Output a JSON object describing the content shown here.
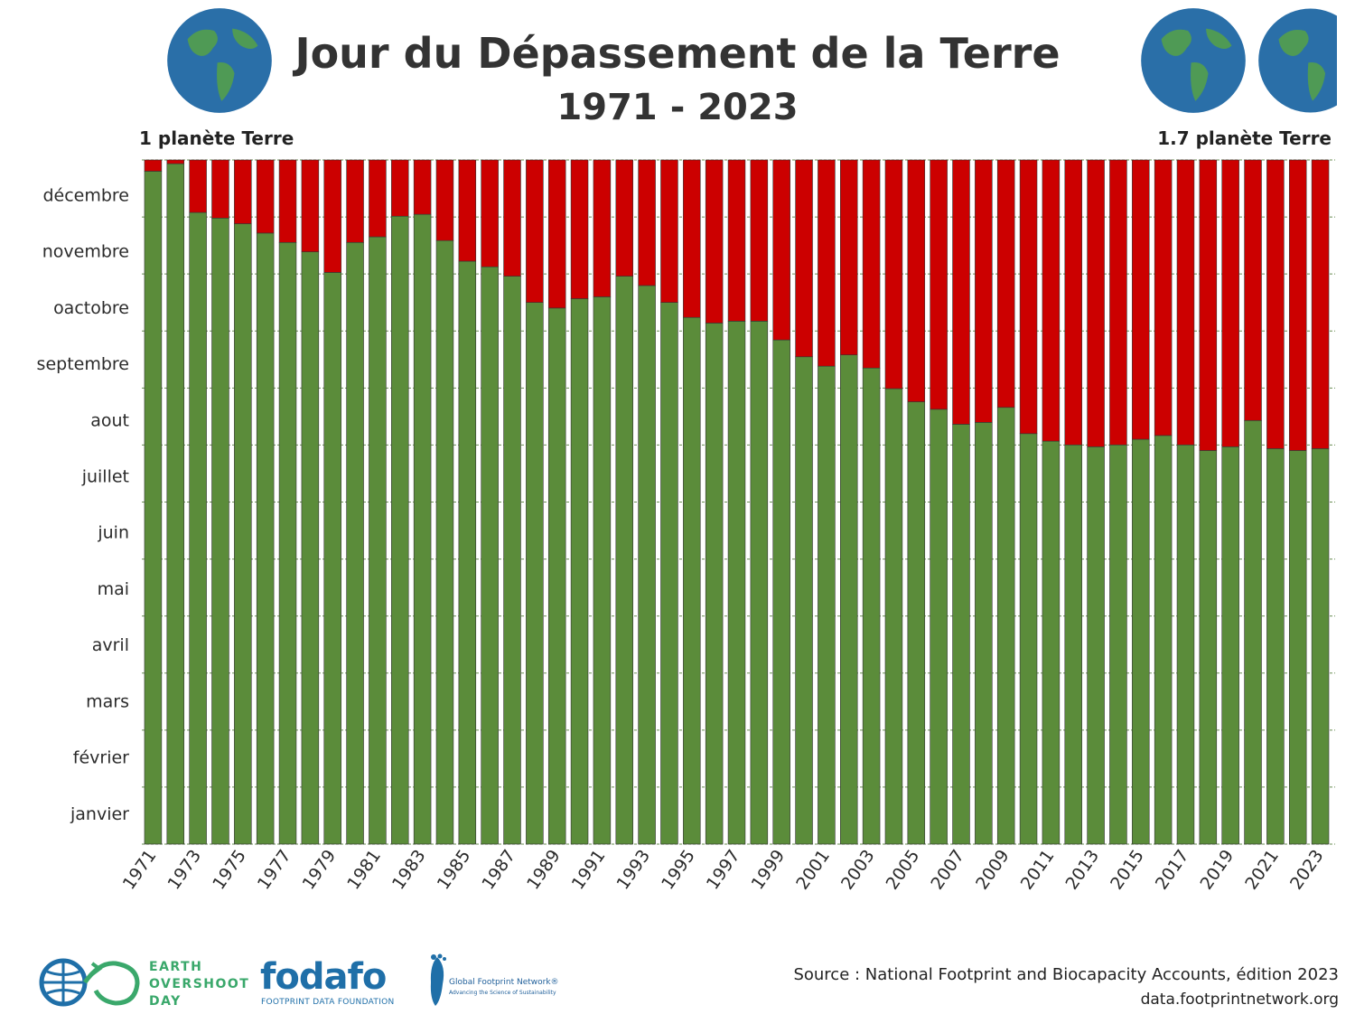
{
  "header": {
    "title": "Jour du Dépassement de la Terre",
    "subtitle": "1971 - 2023",
    "left_note": "1 planète Terre",
    "right_note": "1.7 planète Terre"
  },
  "footer": {
    "source": "Source : National Footprint and Biocapacity Accounts, édition 2023",
    "url": "data.footprintnetwork.org",
    "logos": {
      "earth_overshoot_day": [
        "EARTH",
        "OVERSHOOT",
        "DAY"
      ],
      "fodafo": "fodafo",
      "fodafo_sub": "FOOTPRINT DATA FOUNDATION",
      "gfn": "Global Footprint Network®",
      "gfn_sub": "Advancing the Science of Sustainability"
    }
  },
  "colors": {
    "green": "#5b8c3a",
    "red": "#cc0000",
    "grid": "#6b8f55",
    "globe_ocean": "#2a6fa8",
    "globe_land": "#4f9a55"
  },
  "chart_data": {
    "type": "bar",
    "stacked": true,
    "y_unit": "day of year",
    "ylim": [
      0,
      365
    ],
    "y_ticks": [
      {
        "label": "janvier",
        "value": 16
      },
      {
        "label": "février",
        "value": 46
      },
      {
        "label": "mars",
        "value": 76
      },
      {
        "label": "avril",
        "value": 106
      },
      {
        "label": "mai",
        "value": 136
      },
      {
        "label": "juin",
        "value": 166
      },
      {
        "label": "juillet",
        "value": 196
      },
      {
        "label": "aout",
        "value": 226
      },
      {
        "label": "septembre",
        "value": 256
      },
      {
        "label": "oactobre",
        "value": 286
      },
      {
        "label": "novembre",
        "value": 316
      },
      {
        "label": "décembre",
        "value": 346
      }
    ],
    "x_tick_labels": [
      "1971",
      "1973",
      "1975",
      "1977",
      "1979",
      "1981",
      "1983",
      "1985",
      "1987",
      "1989",
      "1991",
      "1993",
      "1995",
      "1997",
      "1999",
      "2001",
      "2003",
      "2005",
      "2007",
      "2009",
      "2011",
      "2013",
      "2015",
      "2017",
      "2019",
      "2021",
      "2023"
    ],
    "categories": [
      "1971",
      "1972",
      "1973",
      "1974",
      "1975",
      "1976",
      "1977",
      "1978",
      "1979",
      "1980",
      "1981",
      "1982",
      "1983",
      "1984",
      "1985",
      "1986",
      "1987",
      "1988",
      "1989",
      "1990",
      "1991",
      "1992",
      "1993",
      "1994",
      "1995",
      "1996",
      "1997",
      "1998",
      "1999",
      "2000",
      "2001",
      "2002",
      "2003",
      "2004",
      "2005",
      "2006",
      "2007",
      "2008",
      "2009",
      "2010",
      "2011",
      "2012",
      "2013",
      "2014",
      "2015",
      "2016",
      "2017",
      "2018",
      "2019",
      "2020",
      "2021",
      "2022",
      "2023"
    ],
    "series": [
      {
        "color": "#5b8c3a",
        "values": [
          359,
          363,
          337,
          334,
          331,
          326,
          321,
          316,
          305,
          321,
          324,
          335,
          336,
          322,
          311,
          308,
          303,
          289,
          286,
          291,
          292,
          303,
          298,
          289,
          281,
          278,
          279,
          279,
          269,
          260,
          255,
          261,
          254,
          243,
          236,
          232,
          224,
          225,
          233,
          219,
          215,
          213,
          212,
          213,
          216,
          218,
          213,
          210,
          212,
          226,
          211,
          210,
          211
        ]
      },
      {
        "color": "#cc0000",
        "values": [
          6,
          2,
          28,
          31,
          34,
          39,
          44,
          49,
          60,
          44,
          41,
          30,
          29,
          43,
          54,
          57,
          62,
          76,
          79,
          74,
          73,
          62,
          67,
          76,
          84,
          87,
          86,
          86,
          96,
          105,
          110,
          104,
          111,
          122,
          129,
          133,
          141,
          140,
          132,
          146,
          150,
          152,
          153,
          152,
          149,
          147,
          152,
          155,
          153,
          139,
          154,
          155,
          154
        ]
      }
    ]
  }
}
